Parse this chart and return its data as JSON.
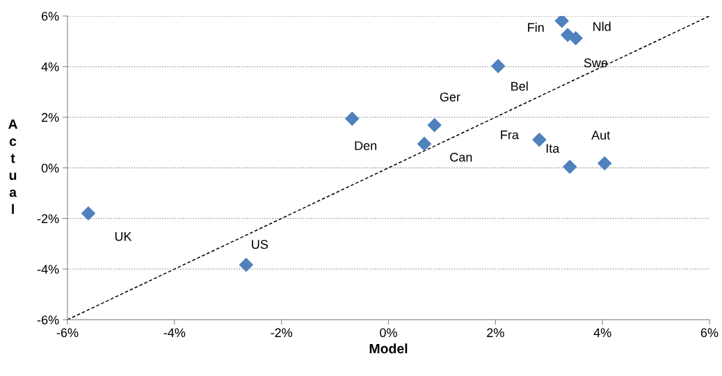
{
  "chart_data": {
    "type": "scatter",
    "xlabel": "Model",
    "ylabel": "Actual",
    "series": [
      {
        "color": "#4f81bd",
        "marker": "diamond",
        "x": [
          -5.61,
          -2.66,
          -0.68,
          0.67,
          0.86,
          2.05,
          3.24,
          3.35,
          3.5,
          2.82,
          3.39,
          4.04
        ],
        "values": [
          -1.8,
          -3.83,
          1.94,
          0.95,
          1.69,
          4.02,
          5.81,
          5.25,
          5.12,
          1.11,
          0.04,
          0.18
        ]
      },
      {
        "type": "line",
        "color": "#000000",
        "line_style": "dashed",
        "marker": "none",
        "x": [
          -6,
          6
        ],
        "values": [
          -6,
          6
        ]
      }
    ],
    "annotations": [
      {
        "text": "UK",
        "x": -5.61,
        "y": -1.8
      },
      {
        "text": "US",
        "x": -2.66,
        "y": -3.83
      },
      {
        "text": "Den",
        "x": -0.68,
        "y": 1.94
      },
      {
        "text": "Can",
        "x": 0.67,
        "y": 0.95
      },
      {
        "text": "Ger",
        "x": 0.86,
        "y": 1.69
      },
      {
        "text": "Bel",
        "x": 2.05,
        "y": 4.02
      },
      {
        "text": "Fin",
        "x": 3.24,
        "y": 5.81
      },
      {
        "text": "Swe",
        "x": 3.35,
        "y": 5.25
      },
      {
        "text": "Nld",
        "x": 3.5,
        "y": 5.12
      },
      {
        "text": "Fra",
        "x": 2.82,
        "y": 1.11
      },
      {
        "text": "Ita",
        "x": 3.39,
        "y": 0.04
      },
      {
        "text": "Aut",
        "x": 4.04,
        "y": 0.18
      }
    ],
    "xlim": [
      -6,
      6
    ],
    "ylim": [
      -6,
      6
    ],
    "xticks": [
      {
        "value": -6,
        "label": "-6%"
      },
      {
        "value": -4,
        "label": "-4%"
      },
      {
        "value": -2,
        "label": "-2%"
      },
      {
        "value": 0,
        "label": "0%"
      },
      {
        "value": 2,
        "label": "2%"
      },
      {
        "value": 4,
        "label": "4%"
      },
      {
        "value": 6,
        "label": "6%"
      }
    ],
    "yticks": [
      {
        "value": -6,
        "label": "-6%"
      },
      {
        "value": -4,
        "label": "-4%"
      },
      {
        "value": -2,
        "label": "-2%"
      },
      {
        "value": 0,
        "label": "0%"
      },
      {
        "value": 2,
        "label": "2%"
      },
      {
        "value": 4,
        "label": "4%"
      },
      {
        "value": 6,
        "label": "6%"
      }
    ],
    "grid": "y",
    "legend": false
  }
}
